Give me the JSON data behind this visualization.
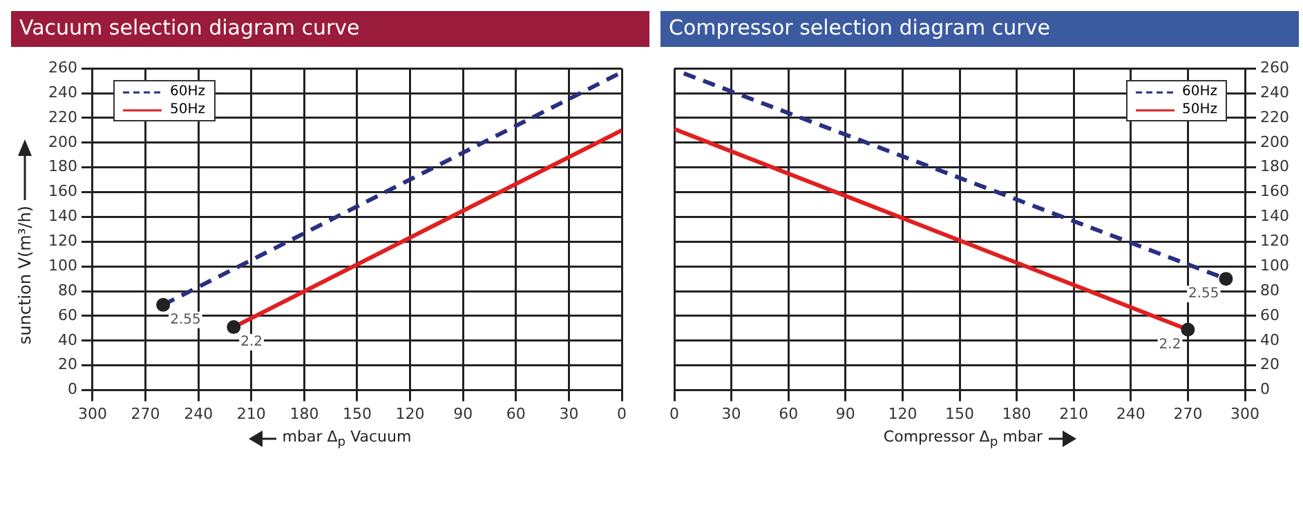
{
  "chart_data": [
    {
      "type": "line",
      "title": "Vacuum selection diagram curve",
      "xlabel": "mbar Δ$_{p}$ Vacuum",
      "ylabel": "sunction V(m³/h)",
      "series": [
        {
          "name": "60Hz",
          "color": "#2b2f80",
          "line_style": "dashed",
          "x": [
            260,
            0
          ],
          "values": [
            69,
            257
          ]
        },
        {
          "name": "50Hz",
          "color": "#e02020",
          "line_style": "solid",
          "x": [
            220,
            0
          ],
          "values": [
            51,
            210
          ]
        }
      ],
      "xlim": [
        300,
        0
      ],
      "xticks": [
        300,
        270,
        240,
        210,
        180,
        150,
        120,
        90,
        60,
        30,
        0
      ],
      "ylim": [
        0,
        260
      ],
      "yticks": [
        0,
        20,
        40,
        60,
        80,
        100,
        120,
        140,
        160,
        180,
        200,
        220,
        240,
        260
      ],
      "grid": true,
      "legend": "top left",
      "marker": "circle",
      "annotations": [
        {
          "text": "2.55",
          "x": 260,
          "y": 69
        },
        {
          "text": "2.2",
          "x": 220,
          "y": 51
        }
      ]
    },
    {
      "type": "line",
      "title": "Compressor selection diagram curve",
      "xlabel": "Compressor Δ$_{p}$ mbar",
      "series": [
        {
          "name": "60Hz",
          "color": "#2b2f80",
          "line_style": "dashed",
          "x": [
            5,
            290
          ],
          "values": [
            256,
            90
          ]
        },
        {
          "name": "50Hz",
          "color": "#e02020",
          "line_style": "solid",
          "x": [
            0,
            270
          ],
          "values": [
            211,
            49
          ]
        }
      ],
      "xlim": [
        0,
        300
      ],
      "xticks": [
        0,
        30,
        60,
        90,
        120,
        150,
        180,
        210,
        240,
        270,
        300
      ],
      "ylim": [
        0,
        260
      ],
      "yticks": [
        0,
        20,
        40,
        60,
        80,
        100,
        120,
        140,
        160,
        180,
        200,
        220,
        240,
        260
      ],
      "grid": true,
      "legend": "top right",
      "marker": "circle",
      "annotations": [
        {
          "text": "2.55",
          "x": 290,
          "y": 90
        },
        {
          "text": "2.2",
          "x": 270,
          "y": 49
        }
      ]
    }
  ]
}
